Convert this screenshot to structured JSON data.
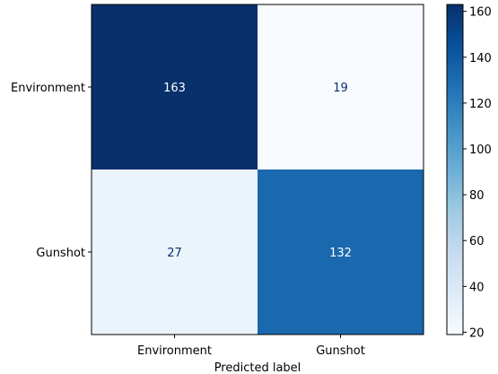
{
  "chart_data": {
    "type": "heatmap",
    "title": "",
    "xlabel": "Predicted label",
    "ylabel": "",
    "x_categories": [
      "Environment",
      "Gunshot"
    ],
    "y_categories": [
      "Environment",
      "Gunshot"
    ],
    "values": [
      [
        163,
        19
      ],
      [
        27,
        132
      ]
    ],
    "colormap": "Blues",
    "color_range": [
      19,
      163
    ],
    "colorbar_ticks": [
      20,
      40,
      60,
      80,
      100,
      120,
      140,
      160
    ],
    "colorbar_position": "right",
    "grid": false
  },
  "colors": {
    "low": "#f7fbff",
    "high": "#08306b",
    "text_dark": "#08306b",
    "text_light": "#ffffff"
  }
}
